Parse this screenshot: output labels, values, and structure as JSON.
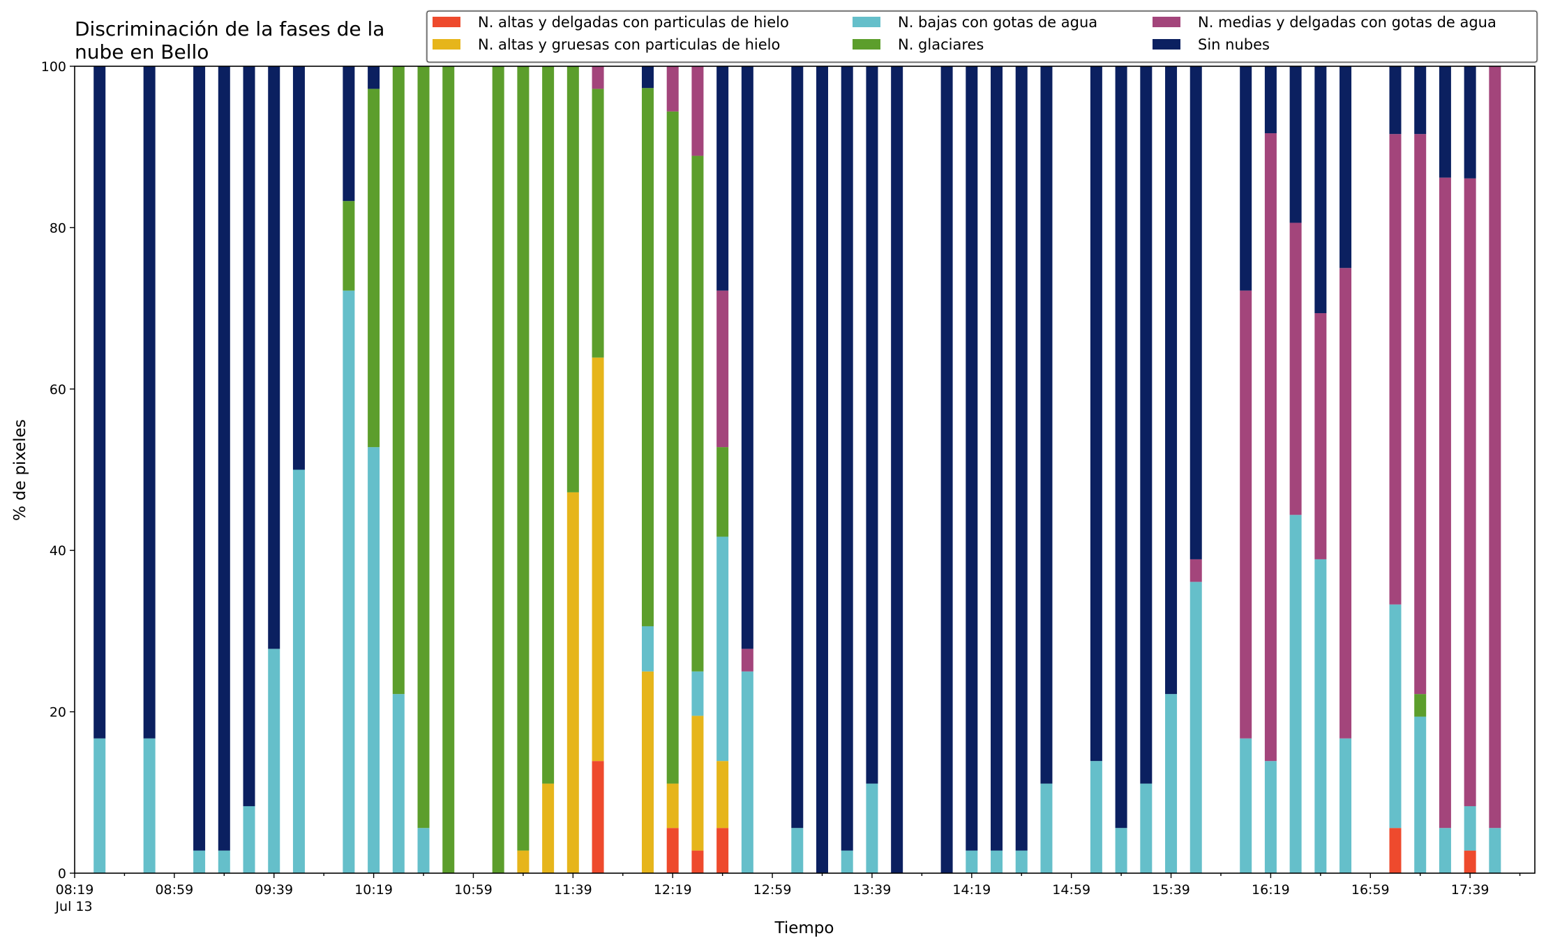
{
  "chart_data": {
    "type": "bar",
    "stacked": true,
    "title_lines": [
      "Discriminación de la fases de la",
      "nube en Bello"
    ],
    "xlabel": "Tiempo",
    "ylabel": "% de pixeles",
    "ylim": [
      0,
      100
    ],
    "yticks": [
      0,
      20,
      40,
      60,
      80,
      100
    ],
    "xlim": [
      "08:19",
      "18:05"
    ],
    "xticks": [
      "08:19",
      "08:59",
      "09:39",
      "10:19",
      "10:59",
      "11:39",
      "12:19",
      "12:59",
      "13:39",
      "14:19",
      "14:59",
      "15:39",
      "16:19",
      "16:59",
      "17:39"
    ],
    "x_date_label": "Jul 13",
    "grid": false,
    "legend_position": "top-right",
    "series": [
      {
        "key": "high_thin_ice",
        "name": "N. altas y delgadas con particulas de hielo",
        "color": "#ee4a2d"
      },
      {
        "key": "high_thick_ice",
        "name": "N. altas y gruesas con particulas de hielo",
        "color": "#e6b51b"
      },
      {
        "key": "low_water",
        "name": "N. bajas con gotas de agua",
        "color": "#65bfca"
      },
      {
        "key": "glaciers",
        "name": "N. glaciares",
        "color": "#5c9e2c"
      },
      {
        "key": "mid_thin_water",
        "name": "N. medias y delgadas con gotas de agua",
        "color": "#a3457b"
      },
      {
        "key": "no_clouds",
        "name": "Sin nubes",
        "color": "#0b2060"
      }
    ],
    "stack_order": [
      "high_thin_ice",
      "high_thick_ice",
      "low_water",
      "glaciers",
      "mid_thin_water",
      "no_clouds"
    ],
    "bars": [
      {
        "time": "08:29",
        "low_water": 16.7,
        "no_clouds": 83.3
      },
      {
        "time": "08:49",
        "low_water": 16.7,
        "no_clouds": 83.3
      },
      {
        "time": "09:09",
        "low_water": 2.8,
        "no_clouds": 97.2
      },
      {
        "time": "09:19",
        "low_water": 2.8,
        "no_clouds": 97.2
      },
      {
        "time": "09:29",
        "low_water": 8.3,
        "no_clouds": 91.7
      },
      {
        "time": "09:39",
        "low_water": 27.8,
        "no_clouds": 72.2
      },
      {
        "time": "09:49",
        "low_water": 50.0,
        "no_clouds": 50.0
      },
      {
        "time": "10:09",
        "low_water": 72.2,
        "glaciers": 11.1,
        "no_clouds": 16.7
      },
      {
        "time": "10:19",
        "low_water": 52.8,
        "glaciers": 44.4,
        "no_clouds": 2.8
      },
      {
        "time": "10:29",
        "low_water": 22.2,
        "glaciers": 77.8
      },
      {
        "time": "10:39",
        "low_water": 5.6,
        "glaciers": 94.4
      },
      {
        "time": "10:49",
        "glaciers": 100
      },
      {
        "time": "11:09",
        "glaciers": 100
      },
      {
        "time": "11:19",
        "high_thick_ice": 2.8,
        "glaciers": 97.2
      },
      {
        "time": "11:29",
        "high_thick_ice": 11.1,
        "glaciers": 88.9
      },
      {
        "time": "11:39",
        "high_thick_ice": 47.2,
        "glaciers": 52.8
      },
      {
        "time": "11:49",
        "high_thin_ice": 13.9,
        "high_thick_ice": 50.0,
        "glaciers": 33.3,
        "mid_thin_water": 2.8
      },
      {
        "time": "12:09",
        "high_thick_ice": 25.0,
        "low_water": 5.6,
        "glaciers": 66.7,
        "no_clouds": 2.7
      },
      {
        "time": "12:19",
        "high_thin_ice": 5.6,
        "high_thick_ice": 5.5,
        "glaciers": 83.3,
        "mid_thin_water": 5.6
      },
      {
        "time": "12:29",
        "high_thin_ice": 2.8,
        "high_thick_ice": 16.7,
        "low_water": 5.5,
        "glaciers": 63.9,
        "mid_thin_water": 11.1
      },
      {
        "time": "12:39",
        "high_thin_ice": 5.6,
        "high_thick_ice": 8.3,
        "low_water": 27.8,
        "glaciers": 11.1,
        "mid_thin_water": 19.4,
        "no_clouds": 27.8
      },
      {
        "time": "12:49",
        "low_water": 25.0,
        "mid_thin_water": 2.8,
        "no_clouds": 72.2
      },
      {
        "time": "13:09",
        "low_water": 5.6,
        "no_clouds": 94.4
      },
      {
        "time": "13:19",
        "no_clouds": 100
      },
      {
        "time": "13:29",
        "low_water": 2.8,
        "no_clouds": 97.2
      },
      {
        "time": "13:39",
        "low_water": 11.1,
        "no_clouds": 88.9
      },
      {
        "time": "13:49",
        "no_clouds": 100
      },
      {
        "time": "14:09",
        "no_clouds": 100
      },
      {
        "time": "14:19",
        "low_water": 2.8,
        "no_clouds": 97.2
      },
      {
        "time": "14:29",
        "low_water": 2.8,
        "no_clouds": 97.2
      },
      {
        "time": "14:39",
        "low_water": 2.8,
        "no_clouds": 97.2
      },
      {
        "time": "14:49",
        "low_water": 11.1,
        "no_clouds": 88.9
      },
      {
        "time": "15:09",
        "low_water": 13.9,
        "no_clouds": 86.1
      },
      {
        "time": "15:19",
        "low_water": 5.6,
        "no_clouds": 94.4
      },
      {
        "time": "15:29",
        "low_water": 11.1,
        "no_clouds": 88.9
      },
      {
        "time": "15:39",
        "low_water": 22.2,
        "no_clouds": 77.8
      },
      {
        "time": "15:49",
        "low_water": 36.1,
        "mid_thin_water": 2.8,
        "no_clouds": 61.1
      },
      {
        "time": "16:09",
        "low_water": 16.7,
        "mid_thin_water": 55.5,
        "no_clouds": 27.8
      },
      {
        "time": "16:19",
        "low_water": 13.9,
        "mid_thin_water": 77.8,
        "no_clouds": 8.3
      },
      {
        "time": "16:29",
        "low_water": 44.4,
        "mid_thin_water": 36.2,
        "no_clouds": 19.4
      },
      {
        "time": "16:39",
        "low_water": 38.9,
        "mid_thin_water": 30.5,
        "no_clouds": 30.6
      },
      {
        "time": "16:49",
        "low_water": 16.7,
        "mid_thin_water": 58.3,
        "no_clouds": 25.0
      },
      {
        "time": "17:09",
        "high_thin_ice": 5.6,
        "low_water": 27.7,
        "mid_thin_water": 58.3,
        "no_clouds": 8.4
      },
      {
        "time": "17:19",
        "low_water": 19.4,
        "glaciers": 2.8,
        "mid_thin_water": 69.4,
        "no_clouds": 8.4
      },
      {
        "time": "17:29",
        "low_water": 5.6,
        "mid_thin_water": 80.6,
        "no_clouds": 13.8
      },
      {
        "time": "17:39",
        "high_thin_ice": 2.8,
        "low_water": 5.5,
        "mid_thin_water": 77.8,
        "no_clouds": 13.9
      },
      {
        "time": "17:49",
        "low_water": 5.6,
        "mid_thin_water": 94.4
      }
    ]
  }
}
